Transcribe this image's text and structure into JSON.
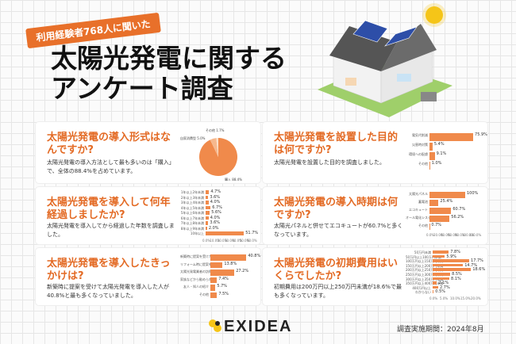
{
  "badge": "利用経験者768人に聞いた",
  "title": [
    "太陽光発電に関する",
    "アンケート調査"
  ],
  "cards": [
    {
      "q": "太陽光発電の導入形式はなんですか?",
      "desc": "太陽光発電の導入方法として最も多いのは「購入」で、全体の88.4%を占めています。"
    },
    {
      "q": "太陽光発電を設置した目的は何ですか?",
      "desc": "太陽光発電を設置した目的を調査しました。"
    },
    {
      "q": "太陽光発電を導入して何年経過しましたか?",
      "desc": "太陽光発電を導入してから経過した年数を調査しました。"
    },
    {
      "q": "太陽光発電の導入時期は何ですか?",
      "desc": "太陽光パネルと併せてエコキュートが60.7%と多くなっています。"
    },
    {
      "q": "太陽光発電を導入したきっかけは?",
      "desc": "新築時に提案を受けて太陽光発電を導入した人が40.8%と最も多くなっていました。"
    },
    {
      "q": "太陽光発電の初期費用はいくらでしたか?",
      "desc": "初期費用は200万円以上250万円未満が18.6%で最も多くなっています。"
    }
  ],
  "chart_data": [
    {
      "type": "pie",
      "labels": [
        "購入",
        "自家消費型PPA",
        "その他"
      ],
      "values": [
        88.4,
        5.0,
        1.7
      ],
      "label_text": [
        "購入 88.4%",
        "自家消費型 5.0%",
        "その他 1.7%"
      ],
      "colors": [
        "#f08a4b",
        "#f6b88d",
        "#fbe0c9"
      ]
    },
    {
      "type": "bar",
      "categories": [
        "電気代削減",
        "災害時対策",
        "環境への配慮",
        "その他"
      ],
      "values": [
        75.9,
        5.4,
        9.1,
        1.0
      ],
      "value_labels": [
        "75.9%",
        "5.4%",
        "9.1%",
        "1.0%"
      ]
    },
    {
      "type": "bar",
      "categories": [
        "1年以上2年未満",
        "2年以上3年未満",
        "3年以上4年未満",
        "4年以上5年未満",
        "5年以上6年未満",
        "6年以上7年未満",
        "7年以上8年未満",
        "8年以上9年未満",
        "10年以上"
      ],
      "values": [
        4.7,
        3.6,
        4.0,
        6.7,
        5.6,
        4.0,
        3.6,
        2.0,
        51.7
      ],
      "value_labels": [
        "4.7%",
        "3.6%",
        "4.0%",
        "6.7%",
        "5.6%",
        "4.0%",
        "3.6%",
        "2.0%",
        "51.7%"
      ],
      "ticks": [
        "0.0%",
        "10.0%",
        "20.0%",
        "30.0%",
        "40.0%",
        "50.0%",
        "60.0%"
      ]
    },
    {
      "type": "bar",
      "categories": [
        "太陽光パネル",
        "蓄電池",
        "エコキュート",
        "オール電化システム",
        "その他"
      ],
      "values": [
        100,
        25.4,
        60.7,
        56.2,
        0.7
      ],
      "value_labels": [
        "100%",
        "25.4%",
        "60.7%",
        "56.2%",
        "0.7%"
      ],
      "ticks": [
        "0.0%",
        "20.0%",
        "40.0%",
        "60.0%",
        "80.0%",
        "100.0%",
        "120.0%"
      ]
    },
    {
      "type": "bar",
      "categories": [
        "新築時に提案を受けた",
        "リフォーム時に提案を受けた",
        "太陽光発電業者の訪問販売",
        "家族などから勧められた",
        "友人・知人の紹介",
        "その他"
      ],
      "values": [
        40.8,
        13.8,
        27.2,
        7.4,
        5.7,
        7.5
      ],
      "value_labels": [
        "40.8%",
        "13.8%",
        "27.2%",
        "7.4%",
        "5.7%",
        "7.5%"
      ]
    },
    {
      "type": "bar",
      "categories": [
        "50万円未満",
        "50万円以上100万円未満",
        "100万円以上150万円未満",
        "150万円以上200万円未満",
        "200万円以上250万円未満",
        "250万円以上300万円未満",
        "300万円以上350万円未満",
        "350万円以上400万円未満",
        "400万円以上",
        "わからない"
      ],
      "values": [
        7.8,
        5.9,
        17.7,
        14.7,
        18.6,
        8.5,
        8.1,
        2.1,
        2.7,
        0.5
      ],
      "value_labels": [
        "7.8%",
        "5.9%",
        "17.7%",
        "14.7%",
        "18.6%",
        "8.5%",
        "8.1%",
        "2.1%",
        "2.7%",
        "0.5%"
      ],
      "ticks": [
        "0.0%",
        "5.0%",
        "10.0%",
        "15.0%",
        "20.0%"
      ]
    }
  ],
  "logo": "EXIDEA",
  "survey_period": "調査実施期間：2024年8月",
  "colors": {
    "accent": "#e36a24",
    "bar": "#f08a4b"
  }
}
